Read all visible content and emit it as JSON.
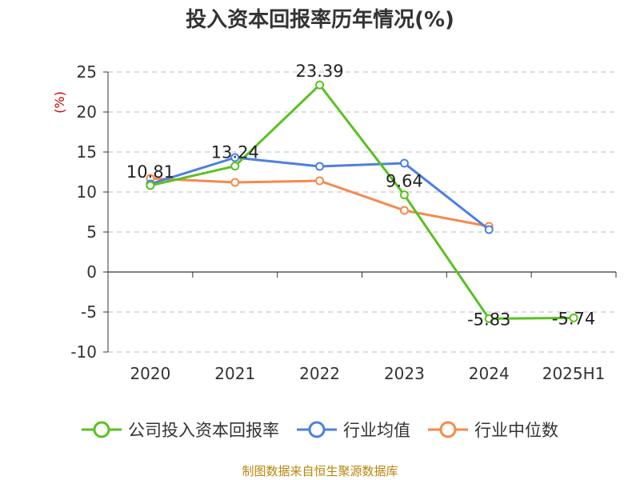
{
  "chart_data": {
    "type": "line",
    "title": "投入资本回报率历年情况(%)",
    "ylabel": "(%)",
    "xlabel": "",
    "categories": [
      "2020",
      "2021",
      "2022",
      "2023",
      "2024",
      "2025H1"
    ],
    "ylim": [
      -10,
      25
    ],
    "yticks": [
      25,
      20,
      15,
      10,
      5,
      0,
      -5,
      -10
    ],
    "grid": true,
    "legend_position": "bottom",
    "series": [
      {
        "name": "公司投入资本回报率",
        "color": "#5ac121",
        "values": [
          10.81,
          13.24,
          23.39,
          9.64,
          -5.83,
          -5.74
        ],
        "labels": [
          "10.81",
          "13.24",
          "23.39",
          "9.64",
          "-5.83",
          "-5.74"
        ]
      },
      {
        "name": "行业均值",
        "color": "#4d7fe0",
        "values": [
          11.0,
          14.3,
          13.2,
          13.6,
          5.3,
          null
        ]
      },
      {
        "name": "行业中位数",
        "color": "#f5894e",
        "values": [
          11.7,
          11.2,
          11.4,
          7.7,
          5.7,
          null
        ]
      }
    ]
  },
  "source_text": "制图数据来自恒生聚源数据库"
}
